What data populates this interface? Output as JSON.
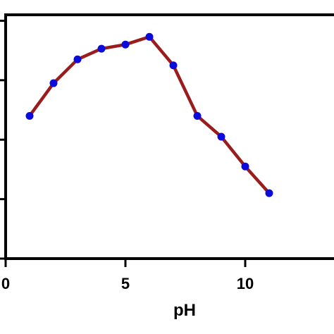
{
  "chart_data": {
    "type": "line",
    "title": "",
    "xlabel": "pH",
    "ylabel": "",
    "xlim": [
      0,
      15
    ],
    "ylim": [
      0,
      4.1
    ],
    "x_ticks": [
      0,
      5,
      10,
      15
    ],
    "x_tick_labels": [
      "0",
      "5",
      "10",
      ""
    ],
    "y_ticks": [
      0,
      1,
      2,
      3,
      4
    ],
    "y_tick_labels": [
      "",
      "",
      "",
      "",
      ""
    ],
    "grid": false,
    "legend": "none",
    "series": [
      {
        "x": [
          1,
          2,
          3,
          4,
          5,
          6,
          7,
          8,
          9,
          10,
          11
        ],
        "y": [
          2.4,
          2.95,
          3.35,
          3.53,
          3.6,
          3.73,
          3.25,
          2.4,
          2.05,
          1.55,
          1.1
        ]
      }
    ],
    "colors": {
      "line": "#9b1c1c",
      "marker": "#0b0bdc",
      "axis": "#000000"
    }
  }
}
